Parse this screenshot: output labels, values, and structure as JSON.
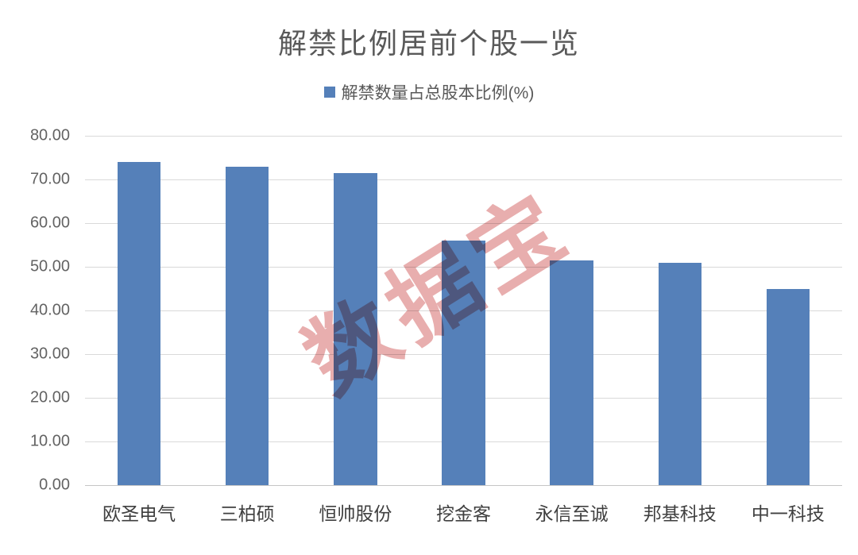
{
  "header": {
    "title": "解禁比例居前个股一览"
  },
  "legend": {
    "label": "解禁数量占总股本比例(%)",
    "marker_color": "#5580B9"
  },
  "watermark": {
    "text": "数据宝",
    "color": "#E08F8F"
  },
  "colors": {
    "bar": "#5580B9",
    "gridline": "#D9D9D9",
    "axis_line": "#C6C6C6",
    "title_text": "#595959",
    "y_tick_text": "#636363",
    "x_tick_text": "#3F3F3F"
  },
  "chart_data": {
    "type": "bar",
    "title": "解禁比例居前个股一览",
    "legend": [
      "解禁数量占总股本比例(%)"
    ],
    "legend_position": "top-center",
    "categories": [
      "欧圣电气",
      "三柏硕",
      "恒帅股份",
      "挖金客",
      "永信至诚",
      "邦基科技",
      "中一科技"
    ],
    "series": [
      {
        "name": "解禁数量占总股本比例(%)",
        "values": [
          74.0,
          73.0,
          71.5,
          56.0,
          51.5,
          51.0,
          45.0
        ]
      }
    ],
    "xlabel": "",
    "ylabel": "",
    "ylim": [
      0,
      80
    ],
    "ytick_step": 10,
    "yticks": [
      "0.00",
      "10.00",
      "20.00",
      "30.00",
      "40.00",
      "50.00",
      "60.00",
      "70.00",
      "80.00"
    ],
    "grid": true,
    "bar_width_fraction": 0.4
  }
}
